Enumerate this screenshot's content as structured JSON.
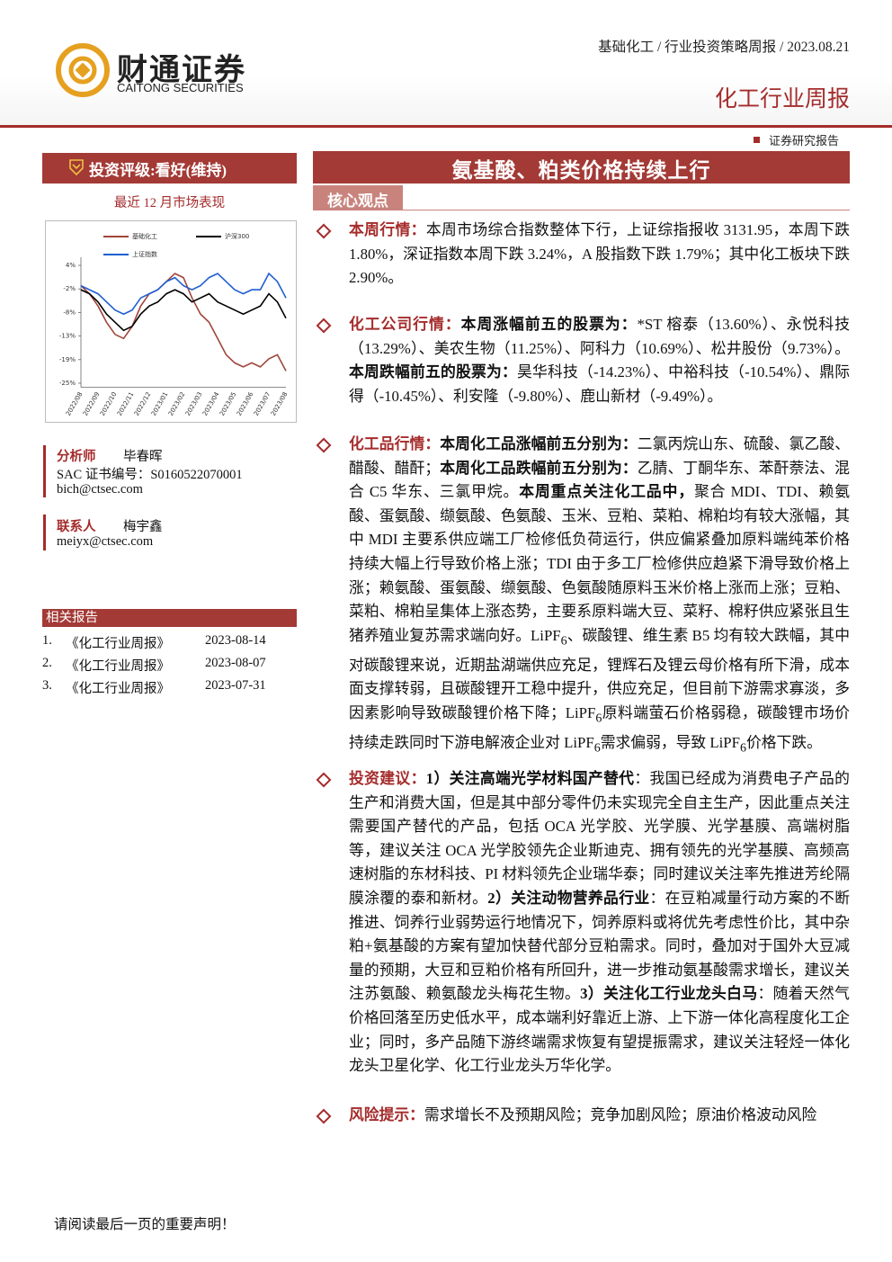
{
  "header": {
    "logo_cn": "财通证券",
    "logo_en": "CAITONG SECURITIES",
    "breadcrumb": "基础化工 / 行业投资策略周报 / 2023.08.21",
    "report_type": "化工行业周报",
    "report_label": "证券研究报告"
  },
  "sidebar": {
    "rating": "投资评级:看好(维持)",
    "chart_caption": "最近 12 月市场表现",
    "analyst": {
      "role": "分析师",
      "name": "毕春晖",
      "cert": "SAC 证书编号：S0160522070001",
      "email": "bich@ctsec.com"
    },
    "contact": {
      "role": "联系人",
      "name": "梅宇鑫",
      "email": "meiyx@ctsec.com"
    },
    "related": {
      "title": "相关报告",
      "items": [
        {
          "no": "1.",
          "title": "《化工行业周报》",
          "date": "2023-08-14"
        },
        {
          "no": "2.",
          "title": "《化工行业周报》",
          "date": "2023-08-07"
        },
        {
          "no": "3.",
          "title": "《化工行业周报》",
          "date": "2023-07-31"
        }
      ]
    }
  },
  "chart_data": {
    "type": "line",
    "categories": [
      "2022/08",
      null,
      "2022/09",
      null,
      "2022/10",
      null,
      "2022/11",
      null,
      "2022/12",
      null,
      "2023/01",
      null,
      "2023/02",
      null,
      "2023/03",
      null,
      "2023/04",
      null,
      "2023/05",
      null,
      "2023/06",
      null,
      "2023/07",
      null,
      "2023/08"
    ],
    "series": [
      {
        "name": "基础化工",
        "color": "#a0453b",
        "values": [
          -1,
          -3,
          -6,
          -10,
          -13,
          -14,
          -11,
          -6,
          -3,
          -2,
          0,
          2,
          1,
          -4,
          -8,
          -10,
          -14,
          -18,
          -20,
          -21,
          -20,
          -21,
          -19,
          -18,
          -22
        ]
      },
      {
        "name": "沪深300",
        "color": "#000000",
        "values": [
          -2,
          -3,
          -5,
          -8,
          -10,
          -12,
          -11,
          -8,
          -6,
          -5,
          -3,
          -2,
          -3,
          -5,
          -4,
          -3,
          -5,
          -6,
          -7,
          -8,
          -7,
          -6,
          -3,
          -5,
          -9
        ]
      },
      {
        "name": "上证指数",
        "color": "#1f5fd0",
        "values": [
          -1,
          -2,
          -3,
          -5,
          -7,
          -8,
          -7,
          -4,
          -3,
          -2,
          0,
          1,
          -1,
          -2,
          -1,
          1,
          2,
          0,
          -2,
          -3,
          -2,
          -2,
          2,
          0,
          -4
        ]
      }
    ],
    "ylim": [
      -26,
      6
    ],
    "yticks": [
      {
        "value": 4,
        "label": "4%"
      },
      {
        "value": -1.8,
        "label": "-2%"
      },
      {
        "value": -7.6,
        "label": "-8%"
      },
      {
        "value": -13.4,
        "label": "-13%"
      },
      {
        "value": -19.2,
        "label": "-19%"
      },
      {
        "value": -25,
        "label": "-25%"
      }
    ]
  },
  "main": {
    "title": "氨基酸、粕类价格持续上行",
    "section": "核心观点",
    "bullets": [
      {
        "label": "本周行情：",
        "segments": [
          {
            "text": "本周市场综合指数整体下行，上证综指报收 3131.95，本周下跌 1.80%，深证指数本周下跌 3.24%，A 股指数下跌 1.79%；其中化工板块下跌 2.90%。",
            "bold": false
          }
        ]
      },
      {
        "label": "化工公司行情：",
        "segments": [
          {
            "text": "本周涨幅前五的股票为：",
            "bold": true
          },
          {
            "text": "*ST 榕泰（13.60%）、永悦科技（13.29%）、美农生物（11.25%）、阿科力（10.69%）、松井股份（9.73%）。",
            "bold": false
          },
          {
            "text": "本周跌幅前五的股票为：",
            "bold": true
          },
          {
            "text": "昊华科技（-14.23%）、中裕科技（-10.54%）、鼎际得（-10.45%）、利安隆（-9.80%）、鹿山新材（-9.49%）。",
            "bold": false
          }
        ]
      },
      {
        "label": "化工品行情：",
        "segments": [
          {
            "text": "本周化工品涨幅前五分别为：",
            "bold": true
          },
          {
            "text": "二氯丙烷山东、硫酸、氯乙酸、醋酸、醋酐；",
            "bold": false
          },
          {
            "text": "本周化工品跌幅前五分别为：",
            "bold": true
          },
          {
            "text": "乙腈、丁酮华东、苯酐萘法、混合 C5 华东、三氯甲烷。",
            "bold": false
          },
          {
            "text": "本周重点关注化工品中，",
            "bold": true
          },
          {
            "text": "聚合 MDI、TDI、赖氨酸、蛋氨酸、缬氨酸、色氨酸、玉米、豆粕、菜粕、棉粕均有较大涨幅，其中 MDI 主要系供应端工厂检修低负荷运行，供应偏紧叠加原料端纯苯价格持续大幅上行导致价格上涨；TDI 由于多工厂检修供应趋紧下滑导致价格上涨；赖氨酸、蛋氨酸、缬氨酸、色氨酸随原料玉米价格上涨而上涨；豆粕、菜粕、棉粕呈集体上涨态势，主要系原料端大豆、菜籽、棉籽供应紧张且生猪养殖业复苏需求端向好。LiPF",
            "bold": false
          },
          {
            "text": "6",
            "bold": false,
            "sub": true
          },
          {
            "text": "、碳酸锂、维生素 B5 均有较大跌幅，其中对碳酸锂来说，近期盐湖端供应充足，锂辉石及锂云母价格有所下滑，成本面支撑转弱，且碳酸锂开工稳中提升，供应充足，但目前下游需求寡淡，多因素影响导致碳酸锂价格下降；LiPF",
            "bold": false
          },
          {
            "text": "6",
            "bold": false,
            "sub": true
          },
          {
            "text": "原料端萤石价格弱稳，碳酸锂市场价持续走跌同时下游电解液企业对 LiPF",
            "bold": false
          },
          {
            "text": "6",
            "bold": false,
            "sub": true
          },
          {
            "text": "需求偏弱，导致 LiPF",
            "bold": false
          },
          {
            "text": "6",
            "bold": false,
            "sub": true
          },
          {
            "text": "价格下跌。",
            "bold": false
          }
        ]
      },
      {
        "label": "投资建议：",
        "segments": [
          {
            "text": "1）关注高端光学材料国产替代",
            "bold": true
          },
          {
            "text": "：我国已经成为消费电子产品的生产和消费大国，但是其中部分零件仍未实现完全自主生产，因此重点关注需要国产替代的产品，包括 OCA 光学胶、光学膜、光学基膜、高端树脂等，建议关注 OCA 光学胶领先企业斯迪克、拥有领先的光学基膜、高频高速树脂的东材科技、PI 材料领先企业瑞华泰；同时建议关注率先推进芳纶隔膜涂覆的泰和新材。",
            "bold": false
          },
          {
            "text": "2）关注动物营养品行业",
            "bold": true
          },
          {
            "text": "：在豆粕减量行动方案的不断推进、饲养行业弱势运行地情况下，饲养原料或将优先考虑性价比，其中杂粕+氨基酸的方案有望加快替代部分豆粕需求。同时，叠加对于国外大豆减量的预期，大豆和豆粕价格有所回升，进一步推动氨基酸需求增长，建议关注苏氨酸、赖氨酸龙头梅花生物。",
            "bold": false
          },
          {
            "text": "3）关注化工行业龙头白马",
            "bold": true
          },
          {
            "text": "：随着天然气价格回落至历史低水平，成本端利好靠近上游、上下游一体化高程度化工企业；同时，多产品随下游终端需求恢复有望提振需求，建议关注轻烃一体化龙头卫星化学、化工行业龙头万华化学。",
            "bold": false
          }
        ]
      },
      {
        "label": "风险提示：",
        "segments": [
          {
            "text": "需求增长不及预期风险；竞争加剧风险；原油价格波动风险",
            "bold": false
          }
        ]
      }
    ]
  },
  "footer": {
    "note": "请阅读最后一页的重要声明！"
  }
}
